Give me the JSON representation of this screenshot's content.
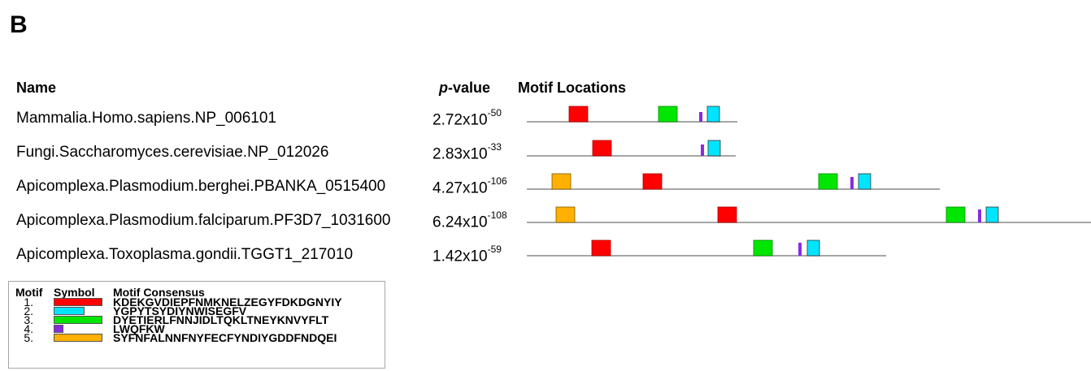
{
  "panel_label": "B",
  "headers": {
    "name": "Name",
    "p_italic": "p",
    "p_rest": "-value",
    "locations": "Motif Locations"
  },
  "sequences": [
    {
      "name": "Mammalia.Homo.sapiens.NP_006101",
      "p_base": "2.72x10",
      "p_exp": "-50"
    },
    {
      "name": "Fungi.Saccharomyces.cerevisiae.NP_012026",
      "p_base": "2.83x10",
      "p_exp": "-33"
    },
    {
      "name": "Apicomplexa.Plasmodium.berghei.PBANKA_0515400",
      "p_base": "4.27x10",
      "p_exp": "-106"
    },
    {
      "name": "Apicomplexa.Plasmodium.falciparum.PF3D7_1031600",
      "p_base": "6.24x10",
      "p_exp": "-108"
    },
    {
      "name": "Apicomplexa.Toxoplasma.gondii.TGGT1_217010",
      "p_base": "1.42x10",
      "p_exp": "-59"
    }
  ],
  "legend": {
    "headers": {
      "motif": "Motif",
      "symbol": "Symbol",
      "consensus": "Motif Consensus"
    },
    "motifs": [
      {
        "num": "1.",
        "color": "#ff0000",
        "consensus": "KDEKGVDIEPFNMKNELZEGYFDKDGNYIY"
      },
      {
        "num": "2.",
        "color": "#00e5ff",
        "consensus": "YGPYTSYDIYNWISEGFV"
      },
      {
        "num": "3.",
        "color": "#00e600",
        "consensus": "DYETIERLFNNJIDLTQKLTNEYKNVYFLT"
      },
      {
        "num": "4.",
        "color": "#8a2be2",
        "consensus": "LWQFKW"
      },
      {
        "num": "5.",
        "color": "#ffb000",
        "consensus": "SYFNFALNNFNYFECFYNDIYGDDFNDQEI"
      }
    ]
  }
}
